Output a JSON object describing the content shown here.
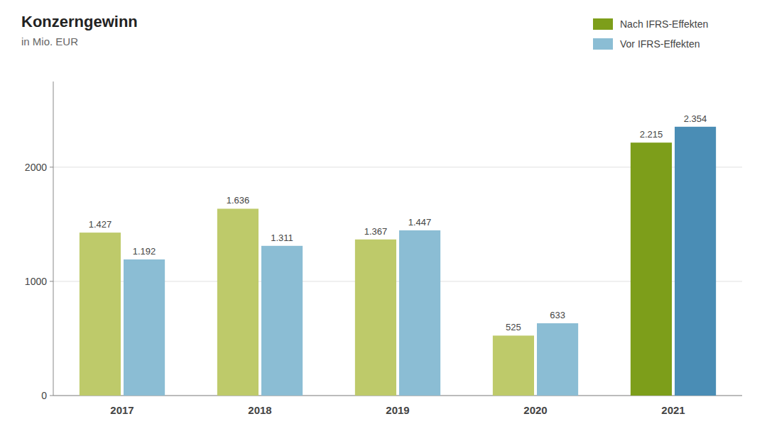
{
  "chart_data": {
    "type": "bar",
    "title": "Konzerngewinn",
    "subtitle": "in Mio. EUR",
    "categories": [
      "2017",
      "2018",
      "2019",
      "2020",
      "2021"
    ],
    "series": [
      {
        "name": "Nach IFRS-Effekten",
        "color": "#7d9e1a",
        "colors": [
          "#beca6a",
          "#beca6a",
          "#beca6a",
          "#beca6a",
          "#7d9e1a"
        ],
        "values": [
          1427,
          1636,
          1367,
          525,
          2215
        ],
        "value_labels": [
          "1.427",
          "1.636",
          "1.367",
          "525",
          "2.215"
        ]
      },
      {
        "name": "Vor IFRS-Effekten",
        "color": "#8bbdd4",
        "colors": [
          "#8bbdd4",
          "#8bbdd4",
          "#8bbdd4",
          "#8bbdd4",
          "#4a8db5"
        ],
        "values": [
          1192,
          1311,
          1447,
          633,
          2354
        ],
        "value_labels": [
          "1.192",
          "1.311",
          "1.447",
          "633",
          "2.354"
        ]
      }
    ],
    "ylim": [
      0,
      2750
    ],
    "yticks": [
      0,
      1000,
      2000
    ],
    "grid": true,
    "legend": "top-right",
    "data_labels": true
  }
}
